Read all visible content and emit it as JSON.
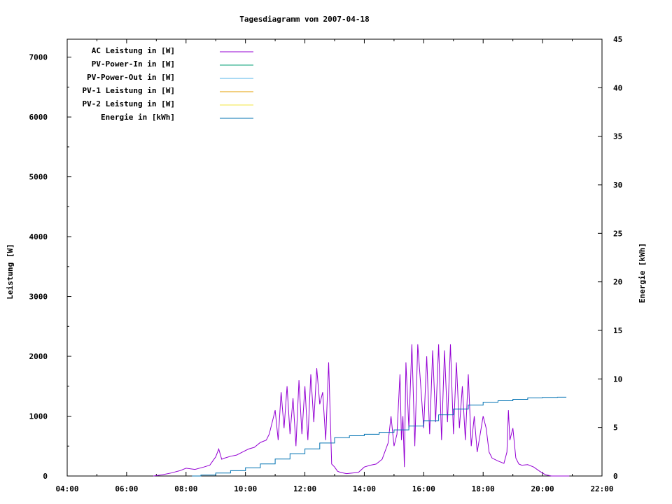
{
  "chart_data": {
    "type": "line",
    "title": "Tagesdiagramm vom 2007-04-18",
    "ylabel": "Leistung [W]",
    "y2label": "Energie [kWh]",
    "xlim": [
      4,
      22
    ],
    "ylim": [
      0,
      7300
    ],
    "y2lim": [
      0,
      45
    ],
    "x_ticks": [
      4,
      6,
      8,
      10,
      12,
      14,
      16,
      18,
      20,
      22
    ],
    "x_tick_labels": [
      "04:00",
      "06:00",
      "08:00",
      "10:00",
      "12:00",
      "14:00",
      "16:00",
      "18:00",
      "20:00",
      "22:00"
    ],
    "y_ticks": [
      0,
      1000,
      2000,
      3000,
      4000,
      5000,
      6000,
      7000
    ],
    "y_tick_labels": [
      "0",
      "1000",
      "2000",
      "3000",
      "4000",
      "5000",
      "6000",
      "7000"
    ],
    "y2_ticks": [
      0,
      5,
      10,
      15,
      20,
      25,
      30,
      35,
      40,
      45
    ],
    "y2_tick_labels": [
      "0",
      "5",
      "10",
      "15",
      "20",
      "25",
      "30",
      "35",
      "40",
      "45"
    ],
    "legend_position": "top-left",
    "grid": false,
    "series": [
      {
        "name": "AC Leistung in [W]",
        "axis": "left",
        "color": "#9400d3",
        "x": [
          6.9,
          7.2,
          7.5,
          7.8,
          8.0,
          8.3,
          8.6,
          8.8,
          9.0,
          9.1,
          9.2,
          9.3,
          9.5,
          9.7,
          9.9,
          10.1,
          10.3,
          10.5,
          10.7,
          10.8,
          10.9,
          11.0,
          11.1,
          11.2,
          11.3,
          11.4,
          11.5,
          11.6,
          11.7,
          11.8,
          11.9,
          12.0,
          12.1,
          12.2,
          12.3,
          12.4,
          12.5,
          12.6,
          12.7,
          12.8,
          12.9,
          13.0,
          13.1,
          13.2,
          13.4,
          13.6,
          13.8,
          14.0,
          14.2,
          14.4,
          14.6,
          14.8,
          14.9,
          15.0,
          15.1,
          15.2,
          15.25,
          15.3,
          15.35,
          15.4,
          15.5,
          15.6,
          15.7,
          15.8,
          15.9,
          16.0,
          16.1,
          16.2,
          16.3,
          16.4,
          16.5,
          16.6,
          16.7,
          16.8,
          16.9,
          17.0,
          17.1,
          17.2,
          17.3,
          17.4,
          17.5,
          17.6,
          17.7,
          17.8,
          17.9,
          18.0,
          18.1,
          18.2,
          18.3,
          18.5,
          18.7,
          18.8,
          18.85,
          18.9,
          19.0,
          19.1,
          19.2,
          19.3,
          19.5,
          19.7,
          19.9,
          20.1,
          20.3,
          20.5,
          20.7,
          20.9
        ],
        "values": [
          0,
          20,
          50,
          90,
          130,
          110,
          150,
          180,
          320,
          450,
          280,
          300,
          330,
          350,
          400,
          450,
          480,
          560,
          600,
          700,
          900,
          1100,
          600,
          1400,
          800,
          1500,
          700,
          1300,
          500,
          1600,
          700,
          1500,
          600,
          1700,
          900,
          1800,
          1200,
          1400,
          600,
          1900,
          200,
          150,
          80,
          60,
          40,
          50,
          60,
          150,
          180,
          200,
          280,
          550,
          1000,
          500,
          700,
          1700,
          600,
          1000,
          150,
          1900,
          800,
          2200,
          500,
          2200,
          1500,
          800,
          2000,
          700,
          2100,
          900,
          2200,
          600,
          2100,
          900,
          2200,
          700,
          1900,
          800,
          1500,
          600,
          1700,
          500,
          1000,
          400,
          700,
          1000,
          800,
          400,
          300,
          250,
          210,
          400,
          1100,
          600,
          800,
          300,
          200,
          180,
          190,
          150,
          80,
          20,
          0,
          0,
          0,
          0
        ]
      },
      {
        "name": "PV-Power-In in [W]",
        "axis": "left",
        "color": "#009e73",
        "x": [],
        "values": []
      },
      {
        "name": "PV-Power-Out in [W]",
        "axis": "left",
        "color": "#56b4e9",
        "x": [],
        "values": []
      },
      {
        "name": "PV-1 Leistung in [W]",
        "axis": "left",
        "color": "#e69f00",
        "x": [],
        "values": []
      },
      {
        "name": "PV-2 Leistung in [W]",
        "axis": "left",
        "color": "#f0e442",
        "x": [],
        "values": []
      },
      {
        "name": "Energie in [kWh]",
        "axis": "right",
        "color": "#0072b2",
        "x": [
          8.2,
          8.5,
          9.0,
          9.5,
          10.0,
          10.5,
          11.0,
          11.5,
          12.0,
          12.5,
          13.0,
          13.5,
          14.0,
          14.5,
          15.0,
          15.5,
          16.0,
          16.5,
          17.0,
          17.5,
          18.0,
          18.5,
          19.0,
          19.5,
          20.0,
          20.5,
          20.8
        ],
        "values": [
          0,
          0.1,
          0.3,
          0.55,
          0.85,
          1.25,
          1.75,
          2.3,
          2.8,
          3.4,
          3.95,
          4.15,
          4.3,
          4.5,
          4.75,
          5.15,
          5.7,
          6.3,
          6.9,
          7.3,
          7.6,
          7.75,
          7.9,
          8.05,
          8.1,
          8.12,
          8.12
        ]
      }
    ]
  }
}
